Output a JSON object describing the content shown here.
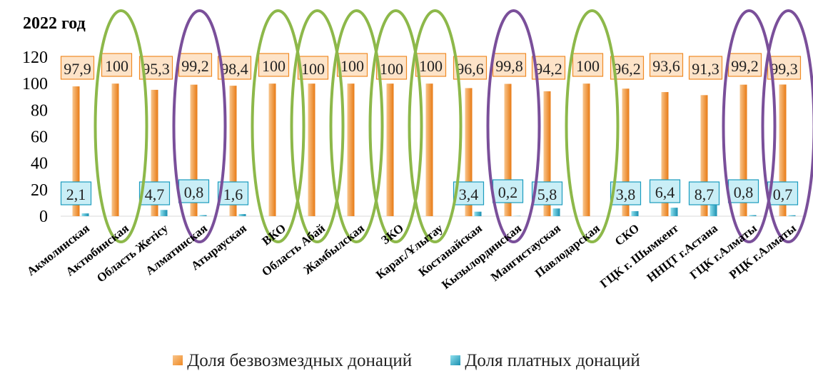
{
  "chart_data": {
    "type": "bar",
    "title": "2022 год",
    "categories": [
      "Акмолинская",
      "Актюбинская",
      "Область Жетісу",
      "Алматинская",
      "Атырауская",
      "ВКО",
      "Область Абай",
      "Жамбылская",
      "ЗКО",
      "Караг./Ұлытау",
      "Костанайская",
      "Кызылординская",
      "Мангистауская",
      "Павлодарская",
      "СКО",
      "ГЦК г. Шымкент",
      "ННЦТ г.Астана",
      "ГЦК г.Алматы",
      "РЦК г.Алматы"
    ],
    "series": [
      {
        "name": "Доля безвозмездных донаций",
        "color": "#f08a24",
        "values": [
          97.9,
          100,
          95.3,
          99.2,
          98.4,
          100,
          100,
          100,
          100,
          100,
          96.6,
          99.8,
          94.2,
          100,
          96.2,
          93.6,
          91.3,
          99.2,
          99.3
        ],
        "labels": [
          "97,9",
          "100",
          "95,3",
          "99,2",
          "98,4",
          "100",
          "100",
          "100",
          "100",
          "100",
          "96,6",
          "99,8",
          "94,2",
          "100",
          "96,2",
          "93,6",
          "91,3",
          "99,2",
          "99,3"
        ]
      },
      {
        "name": "Доля платных донаций",
        "color": "#1a8fb0",
        "values": [
          2.1,
          0,
          4.7,
          0.8,
          1.6,
          0,
          0,
          0,
          0,
          0,
          3.4,
          0.2,
          5.8,
          0,
          3.8,
          6.4,
          8.7,
          0.8,
          0.7
        ],
        "labels": [
          "2,1",
          "",
          "4,7",
          "0,8",
          "1,6",
          "",
          "",
          "",
          "",
          "",
          "3,4",
          "0,2",
          "5,8",
          "",
          "3,8",
          "6,4",
          "8,7",
          "0,8",
          "0,7"
        ]
      }
    ],
    "ylim": [
      0,
      120
    ],
    "yticks": [
      "0",
      "20",
      "40",
      "60",
      "80",
      "100",
      "120"
    ],
    "grid": false,
    "legend_position": "bottom",
    "annotations": {
      "green_ellipse_categories": [
        "Актюбинская",
        "ВКО",
        "Область Абай",
        "Жамбылская",
        "ЗКО",
        "Караг./Ұлытау",
        "Павлодарская"
      ],
      "purple_ellipse_categories": [
        "Алматинская",
        "Кызылординская",
        "ГЦК г.Алматы",
        "РЦК г.Алматы"
      ],
      "green_color": "#8db84a",
      "purple_color": "#7a4f9a"
    }
  },
  "colors": {
    "free_label_bg": "#fde3c8",
    "free_label_border": "#f08a24",
    "paid_label_bg": "#c9eef6",
    "paid_label_border": "#1a9bbf"
  }
}
